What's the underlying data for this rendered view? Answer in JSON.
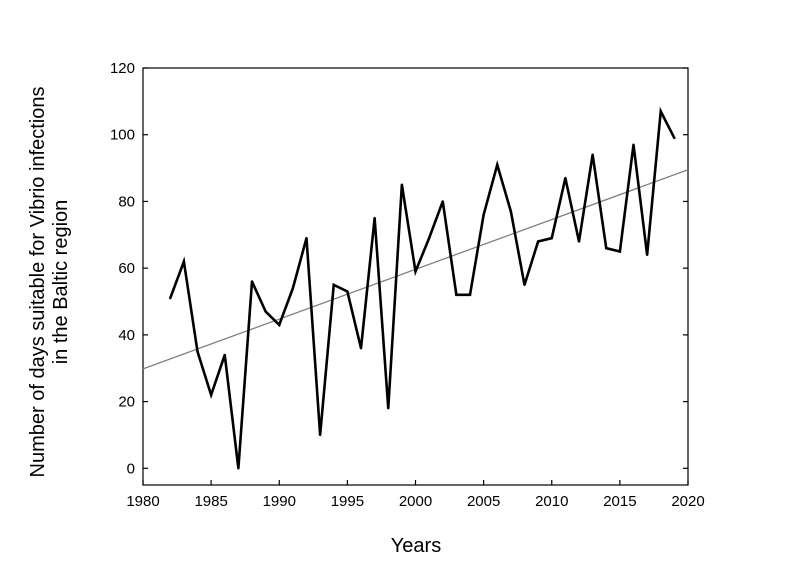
{
  "chart_data": {
    "type": "line",
    "title": "",
    "xlabel": "Years",
    "ylabel_lines": [
      "Number of days suitable for Vibrio infections",
      "in the Baltic region"
    ],
    "xlim": [
      1980,
      2020
    ],
    "ylim": [
      -5,
      120
    ],
    "x_ticks": [
      1980,
      1985,
      1990,
      1995,
      2000,
      2005,
      2010,
      2015,
      2020
    ],
    "y_ticks": [
      0,
      20,
      40,
      60,
      80,
      100,
      120
    ],
    "grid": false,
    "legend": "none",
    "series": [
      {
        "x": [
          1982,
          1983,
          1984,
          1985,
          1986,
          1987,
          1988,
          1989,
          1990,
          1991,
          1992,
          1993,
          1994,
          1995,
          1996,
          1997,
          1998,
          1999,
          2000,
          2001,
          2002,
          2003,
          2004,
          2005,
          2006,
          2007,
          2008,
          2009,
          2010,
          2011,
          2012,
          2013,
          2014,
          2015,
          2016,
          2017,
          2018,
          2019
        ],
        "y": [
          51,
          62,
          35,
          22,
          34,
          0,
          56,
          47,
          43,
          54,
          69,
          10,
          55,
          53,
          36,
          75,
          18,
          85,
          59,
          69,
          80,
          52,
          52,
          76,
          91,
          77,
          55,
          68,
          69,
          87,
          68,
          94,
          66,
          65,
          97,
          64,
          107,
          99
        ],
        "color": "#000000"
      }
    ],
    "trendline": {
      "x": [
        1980,
        2020
      ],
      "y": [
        29.8,
        89.5
      ],
      "color": "#808080"
    }
  }
}
